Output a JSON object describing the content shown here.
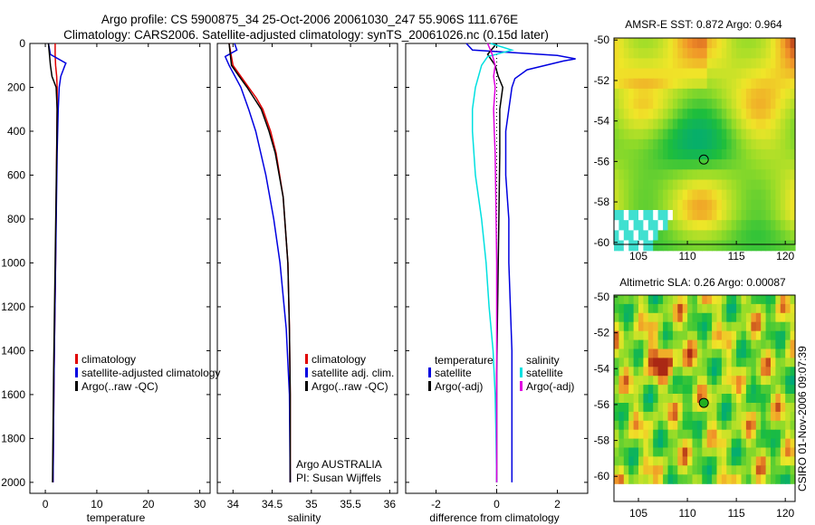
{
  "header": {
    "line1": "Argo profile: CS 5900875_34 25-Oct-2006 20061030_247 55.906S 111.676E",
    "line2": "Climatology: CARS2006. Satellite-adjusted climatology: synTS_20061026.nc (0.15d later)"
  },
  "credit": "CSIRO 01-Nov-2006 09:07:39",
  "chart_data": [
    {
      "id": "temperature",
      "type": "line",
      "xlabel": "temperature",
      "ylabel": "",
      "xlim": [
        -3,
        32
      ],
      "ylim": [
        2050,
        0
      ],
      "xticks": [
        0,
        10,
        20,
        30
      ],
      "yticks": [
        0,
        200,
        400,
        600,
        800,
        1000,
        1200,
        1400,
        1600,
        1800,
        2000
      ],
      "legend_position": "lower-right",
      "series": [
        {
          "name": "climatology",
          "color": "#e00000",
          "depth": [
            0,
            50,
            100,
            150,
            200,
            300,
            500,
            1000,
            1500,
            2000
          ],
          "values": [
            1.9,
            1.9,
            2.0,
            2.2,
            2.3,
            2.3,
            2.2,
            2.0,
            1.7,
            1.5
          ]
        },
        {
          "name": "satellite-adjusted climatology",
          "color": "#0000e0",
          "depth": [
            0,
            50,
            90,
            100,
            150,
            200,
            300,
            500,
            1000,
            1500,
            2000
          ],
          "values": [
            0.6,
            1.0,
            4.0,
            3.8,
            3.0,
            2.7,
            2.5,
            2.3,
            2.0,
            1.7,
            1.5
          ]
        },
        {
          "name": "Argo(..raw -QC)",
          "color": "#000000",
          "depth": [
            0,
            100,
            150,
            200,
            300,
            500,
            1000,
            1500,
            2000
          ],
          "values": [
            0.6,
            1.0,
            1.3,
            2.1,
            2.3,
            2.2,
            1.9,
            1.6,
            1.4
          ]
        }
      ]
    },
    {
      "id": "salinity",
      "type": "line",
      "xlabel": "salinity",
      "ylabel": "",
      "xlim": [
        33.8,
        36.1
      ],
      "ylim": [
        2050,
        0
      ],
      "xticks": [
        34,
        34.5,
        35,
        35.5,
        36
      ],
      "yticks": [
        0,
        200,
        400,
        600,
        800,
        1000,
        1200,
        1400,
        1600,
        1800,
        2000
      ],
      "legend_position": "lower-right",
      "annotations": [
        "Argo AUSTRALIA",
        "PI: Susan Wijffels"
      ],
      "series": [
        {
          "name": "climatology",
          "color": "#e00000",
          "depth": [
            0,
            100,
            150,
            200,
            250,
            300,
            400,
            500,
            700,
            1000,
            1300,
            1600,
            2000
          ],
          "values": [
            33.95,
            34.0,
            34.1,
            34.2,
            34.3,
            34.38,
            34.48,
            34.55,
            34.64,
            34.7,
            34.72,
            34.73,
            34.73
          ]
        },
        {
          "name": "satellite adj. clim.",
          "color": "#0000e0",
          "depth": [
            0,
            30,
            60,
            100,
            200,
            300,
            400,
            600,
            800,
            1000,
            1300,
            1600,
            2000
          ],
          "values": [
            34.02,
            34.05,
            33.9,
            33.95,
            34.1,
            34.2,
            34.29,
            34.42,
            34.52,
            34.6,
            34.68,
            34.72,
            34.73
          ]
        },
        {
          "name": "Argo(..raw -QC)",
          "color": "#000000",
          "depth": [
            0,
            100,
            150,
            200,
            250,
            300,
            400,
            500,
            700,
            1000,
            1300,
            1600,
            2000
          ],
          "values": [
            33.95,
            33.98,
            34.08,
            34.18,
            34.27,
            34.36,
            34.46,
            34.54,
            34.64,
            34.7,
            34.72,
            34.73,
            34.73
          ]
        }
      ]
    },
    {
      "id": "difference",
      "type": "line",
      "xlabel": "difference from climatology",
      "ylabel": "",
      "xlim": [
        -3,
        3
      ],
      "ylim": [
        2050,
        0
      ],
      "xticks": [
        -2,
        0,
        2
      ],
      "yticks": [
        0,
        200,
        400,
        600,
        800,
        1000,
        1200,
        1400,
        1600,
        1800,
        2000
      ],
      "legend_position": "lower-right",
      "legend_groups": [
        "temperature",
        "salinity"
      ],
      "series": [
        {
          "name": "satellite",
          "group": "temperature",
          "color": "#0000e0",
          "depth": [
            0,
            30,
            55,
            70,
            80,
            120,
            160,
            200,
            300,
            400,
            600,
            800,
            1000,
            1200,
            1400,
            1600,
            1800,
            2000
          ],
          "values": [
            -1.0,
            -0.8,
            2.0,
            2.6,
            2.2,
            1.0,
            0.6,
            0.5,
            0.4,
            0.3,
            0.3,
            0.4,
            0.4,
            0.45,
            0.5,
            0.5,
            0.5,
            0.5
          ]
        },
        {
          "name": "Argo(-adj)",
          "group": "temperature",
          "color": "#000000",
          "depth": [
            0,
            50,
            100,
            150,
            200,
            300,
            500,
            1000,
            1500,
            2000
          ],
          "values": [
            0.0,
            -0.3,
            -0.05,
            0.05,
            0.2,
            0.1,
            0.1,
            0.05,
            0.0,
            0.0
          ]
        },
        {
          "name": "satellite",
          "group": "salinity",
          "color": "#00e0e0",
          "depth": [
            0,
            30,
            60,
            100,
            200,
            300,
            400,
            600,
            800,
            1000,
            1200,
            1400,
            1600,
            1800,
            2000
          ],
          "values": [
            -0.2,
            0.5,
            -0.3,
            -0.5,
            -0.7,
            -0.8,
            -0.8,
            -0.7,
            -0.5,
            -0.35,
            -0.25,
            -0.12,
            -0.05,
            -0.02,
            0.0
          ]
        },
        {
          "name": "Argo(-adj)",
          "group": "salinity",
          "color": "#e000e0",
          "depth": [
            0,
            50,
            100,
            150,
            200,
            300,
            400,
            500,
            700,
            1000,
            1500,
            2000
          ],
          "values": [
            -0.3,
            -0.15,
            -0.05,
            -0.1,
            -0.05,
            -0.1,
            -0.08,
            -0.05,
            -0.03,
            0.0,
            0.0,
            0.0
          ]
        }
      ]
    },
    {
      "id": "sst_map",
      "type": "heatmap",
      "title": "AMSR-E SST: 0.872 Argo: 0.964",
      "xlim": [
        102.5,
        121
      ],
      "ylim": [
        -60.1,
        -49.9
      ],
      "xticks": [
        105,
        110,
        115,
        120
      ],
      "yticks": [
        -50,
        -52,
        -54,
        -56,
        -58,
        -60
      ],
      "marker": {
        "lon": 111.676,
        "lat": -55.906
      }
    },
    {
      "id": "sla_map",
      "type": "heatmap",
      "title": "Altimetric SLA: 0.26 Argo: 0.00087",
      "xlim": [
        102.5,
        121
      ],
      "ylim": [
        -61.4,
        -49.9
      ],
      "xticks": [
        105,
        110,
        115,
        120
      ],
      "yticks": [
        -50,
        -52,
        -54,
        -56,
        -58,
        -60
      ],
      "marker": {
        "lon": 111.676,
        "lat": -55.906
      }
    }
  ]
}
